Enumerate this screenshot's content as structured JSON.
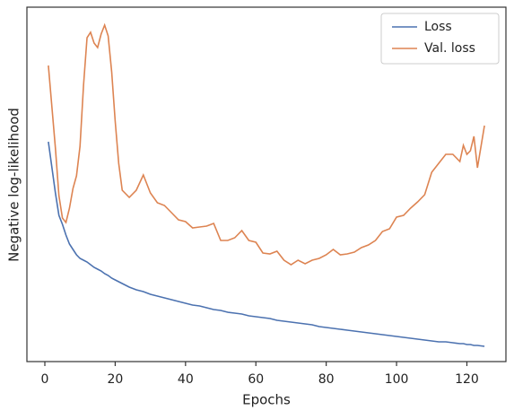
{
  "chart_data": {
    "type": "line",
    "x_label": "Epochs",
    "y_label": "Negative log-likelihood",
    "x": [
      1,
      3,
      4,
      5,
      6,
      7,
      8,
      9,
      10,
      11,
      12,
      13,
      14,
      15,
      16,
      17,
      18,
      19,
      20,
      21,
      22,
      24,
      26,
      28,
      30,
      32,
      34,
      36,
      38,
      40,
      42,
      44,
      46,
      48,
      50,
      52,
      54,
      56,
      58,
      60,
      62,
      64,
      66,
      68,
      70,
      72,
      74,
      76,
      78,
      80,
      82,
      84,
      86,
      88,
      90,
      92,
      94,
      96,
      98,
      100,
      102,
      104,
      106,
      108,
      110,
      112,
      114,
      116,
      118,
      119,
      120,
      121,
      122,
      123,
      125
    ],
    "series": [
      {
        "name": "Loss",
        "color": "#4c72b0",
        "values": [
          245,
          188,
          163,
          153,
          141,
          131,
          125,
          119,
          115,
          113,
          111,
          108,
          105,
          103,
          101,
          98,
          96,
          93,
          91,
          89,
          87,
          83,
          80,
          78,
          75,
          73,
          71,
          69,
          67,
          65,
          63,
          62,
          60,
          58,
          57,
          55,
          54,
          53,
          51,
          50,
          49,
          48,
          46,
          45,
          44,
          43,
          42,
          41,
          39,
          38,
          37,
          36,
          35,
          34,
          33,
          32,
          31,
          30,
          29,
          28,
          27,
          26,
          25,
          24,
          23,
          22,
          22,
          21,
          20,
          20,
          19,
          19,
          18,
          18,
          17
        ]
      },
      {
        "name": "Val. loss",
        "color": "#dd8452",
        "values": [
          330,
          238,
          185,
          160,
          155,
          171,
          193,
          207,
          240,
          308,
          361,
          367,
          355,
          350,
          365,
          375,
          363,
          323,
          268,
          221,
          191,
          183,
          191,
          208,
          188,
          177,
          174,
          166,
          158,
          156,
          149,
          150,
          151,
          154,
          135,
          135,
          138,
          146,
          135,
          133,
          121,
          120,
          123,
          113,
          108,
          113,
          109,
          113,
          115,
          119,
          125,
          119,
          120,
          122,
          127,
          130,
          135,
          145,
          148,
          161,
          163,
          171,
          178,
          186,
          211,
          221,
          231,
          231,
          223,
          241,
          231,
          235,
          251,
          216,
          263
        ]
      }
    ],
    "xlim": [
      -5.1,
      131.1
    ],
    "xticks": [
      0,
      20,
      40,
      60,
      80,
      100,
      120
    ],
    "ylim": [
      0,
      395
    ],
    "legend": "upper right"
  }
}
